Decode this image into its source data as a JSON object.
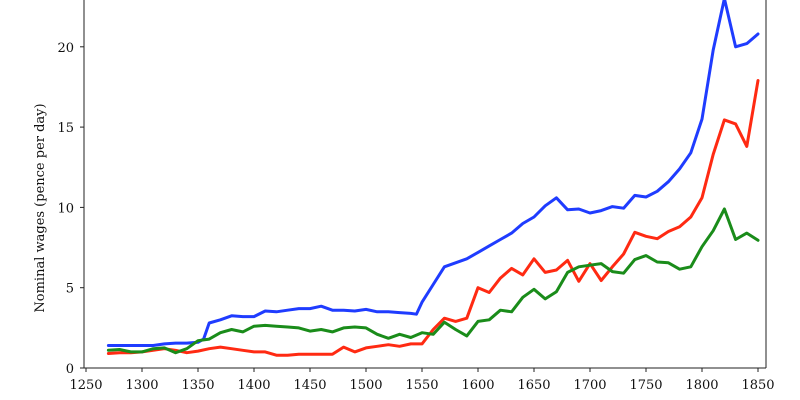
{
  "chart_data": {
    "type": "line",
    "ylabel": "Nominal wages (pence per day)",
    "xlim": [
      1250,
      1860
    ],
    "ylim": [
      0,
      23
    ],
    "x_ticks": [
      1250,
      1300,
      1350,
      1400,
      1450,
      1500,
      1550,
      1600,
      1650,
      1700,
      1750,
      1800,
      1850
    ],
    "x_tick_labels": [
      "1250",
      "1300",
      "1350",
      "1400",
      "1450",
      "1500",
      "1550",
      "1600",
      "1650",
      "1700",
      "1750",
      "1800",
      "1850"
    ],
    "y_ticks": [
      0,
      5,
      10,
      15,
      20
    ],
    "y_tick_labels": [
      "0",
      "5",
      "10",
      "15",
      "20"
    ],
    "grid": false,
    "series": [
      {
        "color": "#1f3cff",
        "x": [
          1270,
          1280,
          1290,
          1300,
          1310,
          1320,
          1330,
          1340,
          1350,
          1355,
          1360,
          1370,
          1380,
          1390,
          1400,
          1410,
          1420,
          1430,
          1440,
          1450,
          1460,
          1470,
          1480,
          1490,
          1500,
          1510,
          1520,
          1530,
          1540,
          1545,
          1550,
          1560,
          1570,
          1580,
          1590,
          1600,
          1610,
          1620,
          1630,
          1640,
          1650,
          1660,
          1670,
          1680,
          1690,
          1700,
          1710,
          1720,
          1730,
          1740,
          1750,
          1760,
          1770,
          1780,
          1790,
          1800,
          1810,
          1820,
          1830,
          1840,
          1850
        ],
        "values": [
          1.4,
          1.4,
          1.4,
          1.4,
          1.4,
          1.5,
          1.55,
          1.55,
          1.6,
          1.8,
          2.8,
          3.0,
          3.25,
          3.2,
          3.2,
          3.55,
          3.5,
          3.6,
          3.7,
          3.7,
          3.85,
          3.6,
          3.6,
          3.55,
          3.65,
          3.5,
          3.5,
          3.45,
          3.4,
          3.35,
          4.1,
          5.2,
          6.3,
          6.55,
          6.8,
          7.2,
          7.6,
          8.0,
          8.4,
          9.0,
          9.4,
          10.1,
          10.6,
          9.85,
          9.9,
          9.65,
          9.8,
          10.05,
          9.95,
          10.75,
          10.65,
          11.0,
          11.6,
          12.4,
          13.4,
          15.5,
          19.8,
          23.0,
          20.0,
          20.2,
          20.8
        ]
      },
      {
        "color": "#ff2a12",
        "x": [
          1270,
          1280,
          1290,
          1300,
          1310,
          1320,
          1330,
          1340,
          1350,
          1360,
          1370,
          1380,
          1390,
          1400,
          1410,
          1420,
          1430,
          1440,
          1450,
          1460,
          1470,
          1480,
          1490,
          1500,
          1510,
          1520,
          1530,
          1540,
          1550,
          1560,
          1570,
          1580,
          1590,
          1600,
          1610,
          1620,
          1630,
          1640,
          1650,
          1660,
          1670,
          1680,
          1690,
          1700,
          1710,
          1720,
          1730,
          1740,
          1750,
          1760,
          1770,
          1780,
          1790,
          1800,
          1810,
          1820,
          1830,
          1840,
          1850
        ],
        "values": [
          0.9,
          0.95,
          0.95,
          1.0,
          1.1,
          1.2,
          1.1,
          0.95,
          1.05,
          1.2,
          1.3,
          1.2,
          1.1,
          1.0,
          1.0,
          0.8,
          0.8,
          0.85,
          0.85,
          0.85,
          0.85,
          1.3,
          1.0,
          1.25,
          1.35,
          1.45,
          1.35,
          1.5,
          1.5,
          2.4,
          3.1,
          2.9,
          3.1,
          5.0,
          4.7,
          5.6,
          6.2,
          5.8,
          6.8,
          5.95,
          6.1,
          6.7,
          5.4,
          6.5,
          5.45,
          6.3,
          7.1,
          8.45,
          8.2,
          8.05,
          8.5,
          8.8,
          9.4,
          10.6,
          13.3,
          15.45,
          15.2,
          13.8,
          17.9
        ]
      },
      {
        "color": "#1a8c1a",
        "x": [
          1270,
          1280,
          1290,
          1300,
          1310,
          1320,
          1330,
          1340,
          1350,
          1360,
          1370,
          1380,
          1390,
          1400,
          1410,
          1420,
          1430,
          1440,
          1450,
          1460,
          1470,
          1480,
          1490,
          1500,
          1510,
          1520,
          1530,
          1540,
          1550,
          1560,
          1570,
          1580,
          1590,
          1600,
          1610,
          1620,
          1630,
          1640,
          1650,
          1660,
          1670,
          1680,
          1690,
          1700,
          1710,
          1720,
          1730,
          1740,
          1750,
          1760,
          1770,
          1780,
          1790,
          1800,
          1810,
          1820,
          1830,
          1840,
          1850
        ],
        "values": [
          1.1,
          1.15,
          1.0,
          1.0,
          1.2,
          1.25,
          0.95,
          1.2,
          1.7,
          1.8,
          2.2,
          2.4,
          2.25,
          2.6,
          2.65,
          2.6,
          2.55,
          2.5,
          2.3,
          2.4,
          2.25,
          2.5,
          2.55,
          2.5,
          2.1,
          1.85,
          2.1,
          1.9,
          2.2,
          2.1,
          2.85,
          2.4,
          2.0,
          2.9,
          3.0,
          3.6,
          3.5,
          4.4,
          4.9,
          4.3,
          4.75,
          5.95,
          6.3,
          6.4,
          6.5,
          6.0,
          5.9,
          6.75,
          7.0,
          6.6,
          6.55,
          6.15,
          6.3,
          7.55,
          8.55,
          9.9,
          8.0,
          8.4,
          7.95
        ]
      }
    ]
  }
}
